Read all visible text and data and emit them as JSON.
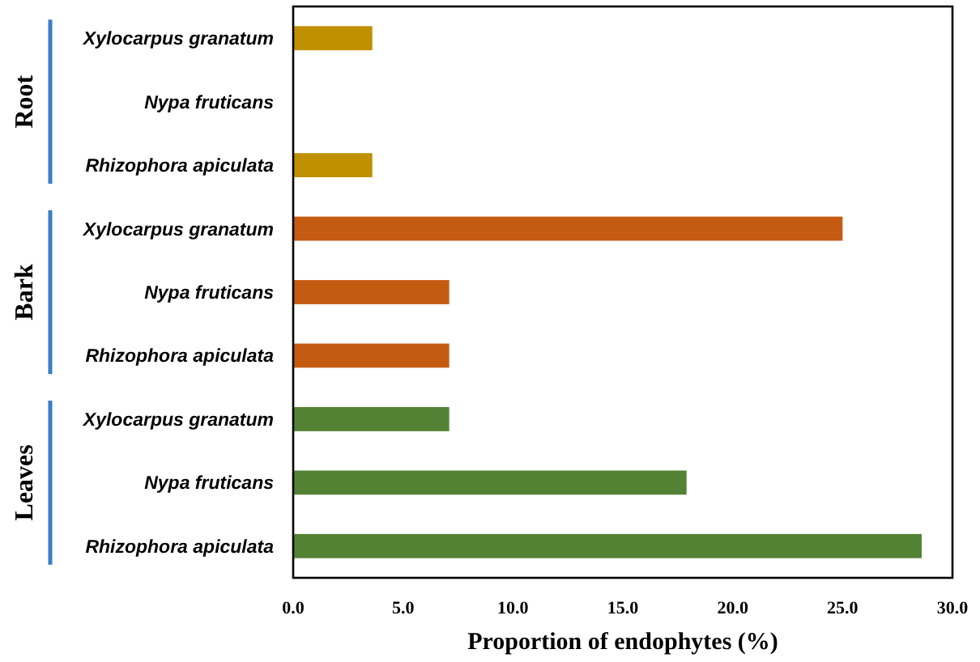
{
  "chart_data": {
    "type": "bar",
    "orientation": "horizontal",
    "xlabel": "Proportion of endophytes (%)",
    "categories": [
      "Xylocarpus granatum",
      "Nypa fruticans",
      "Rhizophora apiculata",
      "Xylocarpus granatum",
      "Nypa fruticans",
      "Rhizophora apiculata",
      "Xylocarpus granatum",
      "Nypa fruticans",
      "Rhizophora apiculata"
    ],
    "values": [
      3.6,
      0,
      3.6,
      25.0,
      7.1,
      7.1,
      7.1,
      17.9,
      28.6
    ],
    "colors": [
      "#c09000",
      "#c09000",
      "#c09000",
      "#c55a11",
      "#c55a11",
      "#c55a11",
      "#548235",
      "#548235",
      "#548235"
    ],
    "xlim": [
      0,
      30
    ],
    "xticks": [
      {
        "value": 0,
        "label": "0.0"
      },
      {
        "value": 5,
        "label": "5.0"
      },
      {
        "value": 10,
        "label": "10.0"
      },
      {
        "value": 15,
        "label": "15.0"
      },
      {
        "value": 20,
        "label": "20.0"
      },
      {
        "value": 25,
        "label": "25.0"
      },
      {
        "value": 30,
        "label": "30.0"
      }
    ],
    "annotations": [
      "Root",
      "Bark",
      "Leaves"
    ],
    "grid": false
  }
}
